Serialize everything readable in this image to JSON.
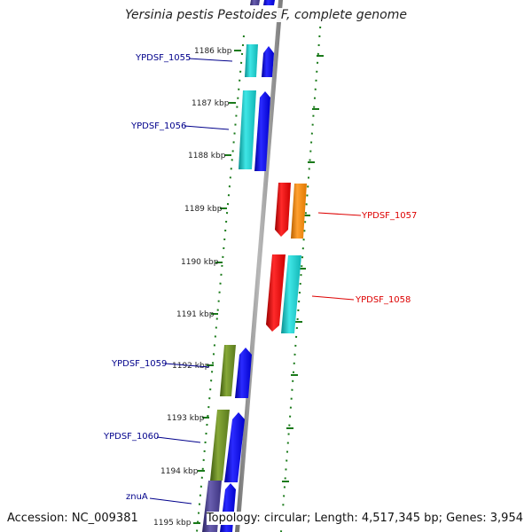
{
  "header": {
    "title": "Yersinia pestis Pestoides F, complete genome"
  },
  "footer": {
    "accession": "Accession: NC_009381",
    "summary": "Topology: circular; Length: 4,517,345 bp; Genes: 3,954"
  },
  "colors": {
    "backbone": "#8c8c8c",
    "tick": "#1a7a1a",
    "label_left": "#00008b",
    "label_right": "#dd0000",
    "cyan": "#1ecfcf",
    "blue": "#0000ee",
    "red": "#ee0000",
    "orange": "#ff8c00",
    "olive": "#6b8e23",
    "slate": "#4a3f8c"
  },
  "kbp_ticks": [
    "1186 kbp",
    "1187 kbp",
    "1188 kbp",
    "1189 kbp",
    "1190 kbp",
    "1191 kbp",
    "1192 kbp",
    "1193 kbp",
    "1194 kbp",
    "1195 kbp"
  ],
  "genes": [
    {
      "label": "YPDSF_1055",
      "side": "left"
    },
    {
      "label": "YPDSF_1056",
      "side": "left"
    },
    {
      "label": "YPDSF_1057",
      "side": "right"
    },
    {
      "label": "YPDSF_1058",
      "side": "right"
    },
    {
      "label": "YPDSF_1059",
      "side": "left"
    },
    {
      "label": "YPDSF_1060",
      "side": "left"
    },
    {
      "label": "znuA",
      "side": "left"
    }
  ]
}
